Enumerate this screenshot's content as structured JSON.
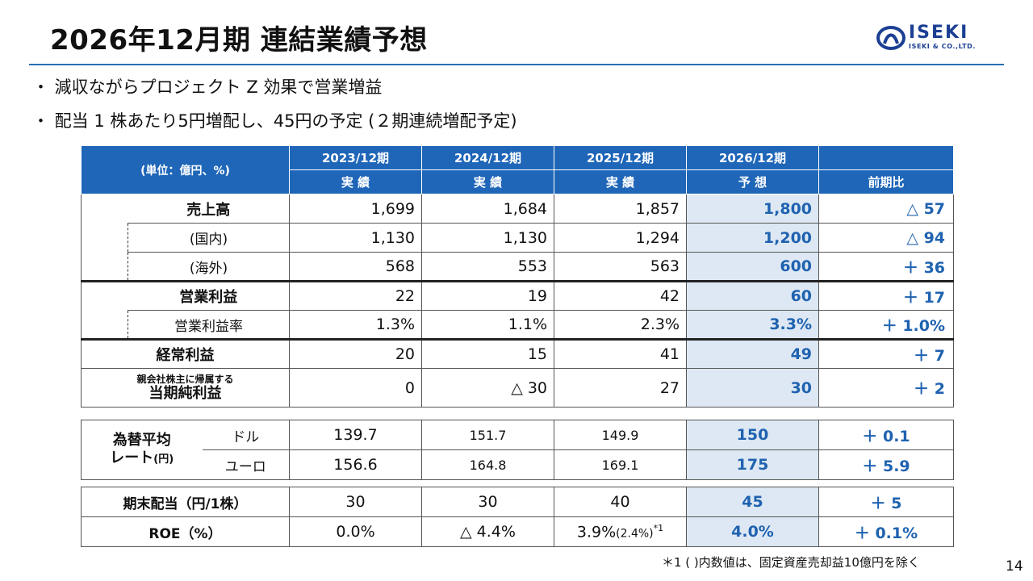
{
  "title": "2026年12月期 連結業績予想",
  "logo": {
    "name": "ISEKI",
    "sub": "ISEKI & CO.,LTD."
  },
  "bullets": [
    "・ 減収ながらプロジェクト Z 効果で営業増益",
    "・ 配当  1 株あたり5円増配し、45円の予定 (２期連続増配予定)"
  ],
  "table": {
    "unit": "(単位：億円、%)",
    "years": [
      "2023/12期",
      "2024/12期",
      "2025/12期",
      "2026/12期"
    ],
    "kinds": [
      "実 績",
      "実 績",
      "実 績",
      "予 想"
    ],
    "change_header": "前期比",
    "rows": {
      "sales": {
        "label": "売上高",
        "v": [
          "1,699",
          "1,684",
          "1,857"
        ],
        "fc": "1,800",
        "chg": "△ 57"
      },
      "domestic": {
        "label": "(国内)",
        "v": [
          "1,130",
          "1,130",
          "1,294"
        ],
        "fc": "1,200",
        "chg": "△ 94"
      },
      "overseas": {
        "label": "(海外)",
        "v": [
          "568",
          "553",
          "563"
        ],
        "fc": "600",
        "chg": "＋ 36"
      },
      "op": {
        "label": "営業利益",
        "v": [
          "22",
          "19",
          "42"
        ],
        "fc": "60",
        "chg": "＋ 17"
      },
      "op_margin": {
        "label": "営業利益率",
        "v": [
          "1.3%",
          "1.1%",
          "2.3%"
        ],
        "fc": "3.3%",
        "chg": "＋ 1.0%"
      },
      "ordinary": {
        "label": "経常利益",
        "v": [
          "20",
          "15",
          "41"
        ],
        "fc": "49",
        "chg": "＋ 7"
      },
      "net": {
        "label_small": "親会社株主に帰属する",
        "label": "当期純利益",
        "v": [
          "0",
          "△ 30",
          "27"
        ],
        "fc": "30",
        "chg": "＋ 2"
      }
    }
  },
  "fx": {
    "label1": "為替平均",
    "label2": "レート",
    "label2_unit": "(円)",
    "usd": {
      "label": "ドル",
      "v": [
        "139.7",
        "151.7",
        "149.9"
      ],
      "fc": "150",
      "chg": "＋ 0.1"
    },
    "eur": {
      "label": "ユーロ",
      "v": [
        "156.6",
        "164.8",
        "169.1"
      ],
      "fc": "175",
      "chg": "＋ 5.9"
    }
  },
  "dividend": {
    "label": "期末配当（円/1株）",
    "v": [
      "30",
      "30",
      "40"
    ],
    "fc": "45",
    "chg": "＋ 5"
  },
  "roe": {
    "label": "ROE（%）",
    "v": [
      "0.0%",
      "△ 4.4%",
      "3.9%"
    ],
    "v3_paren": "(2.4%)",
    "v3_note": "*1",
    "fc": "4.0%",
    "chg": "＋ 0.1%"
  },
  "footnote": "＊1 ( )内数値は、固定資産売却益10億円を除く",
  "page_number": "14",
  "colors": {
    "header_blue": "#1f66b8",
    "forecast_bg": "#dde8f4",
    "accent_blue": "#1f62b0"
  }
}
